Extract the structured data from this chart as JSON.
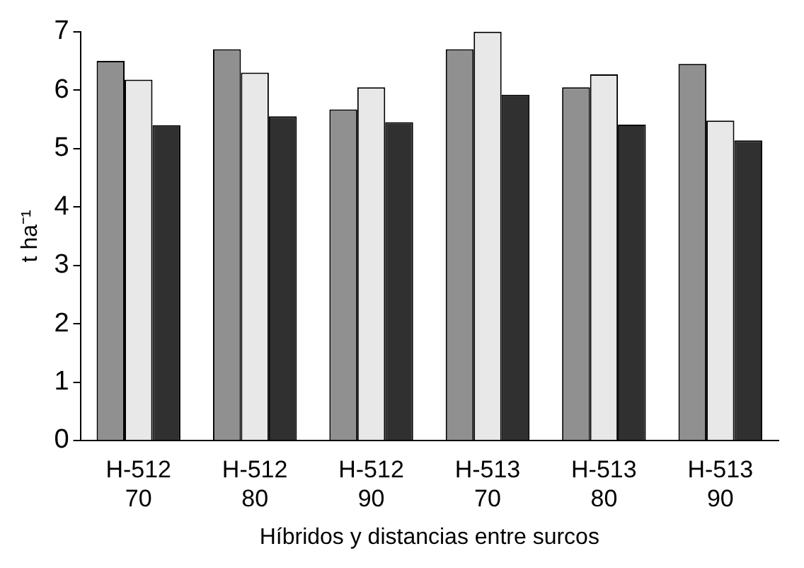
{
  "chart_data": {
    "type": "bar",
    "xlabel": "Híbridos y distancias entre surcos",
    "ylabel": "t ha⁻¹",
    "categories": [
      "H-512\n70",
      "H-512\n80",
      "H-512\n90",
      "H-513\n70",
      "H-513\n80",
      "H-513\n90"
    ],
    "series": [
      {
        "color": "#909090",
        "values": [
          6.5,
          6.7,
          5.67,
          6.7,
          6.05,
          6.45
        ]
      },
      {
        "color": "#e8e8e8",
        "values": [
          6.18,
          6.3,
          6.05,
          7,
          6.27,
          5.48
        ]
      },
      {
        "color": "#303030",
        "values": [
          5.4,
          5.55,
          5.45,
          5.92,
          5.41,
          5.14
        ]
      }
    ],
    "ylim": [
      0,
      7
    ],
    "yticks": [
      0,
      1,
      2,
      3,
      4,
      5,
      6,
      7
    ],
    "grid": false,
    "legend": false
  }
}
